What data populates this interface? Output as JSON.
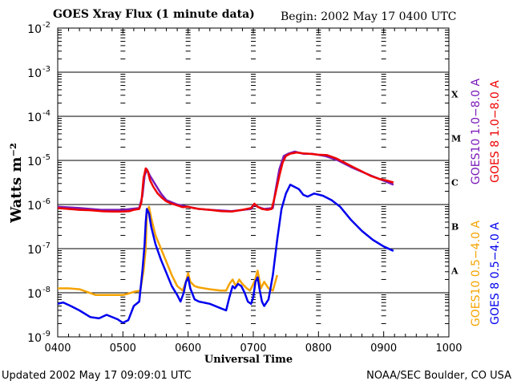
{
  "header": {
    "title": "GOES Xray Flux (1 minute data)",
    "begin": "Begin: 2002 May 17 0400 UTC"
  },
  "footer": {
    "updated": "Updated 2002 May 17 09:09:01 UTC",
    "credit": "NOAA/SEC Boulder, CO USA"
  },
  "chart_data": {
    "type": "line",
    "title": "GOES Xray Flux (1 minute data)",
    "xlabel": "Universal Time",
    "ylabel": "Watts m⁻²",
    "yscale": "log",
    "xlim": [
      0,
      360
    ],
    "ylim": [
      -9,
      -2
    ],
    "x_ticks": [
      {
        "x": 0,
        "label": "0400"
      },
      {
        "x": 60,
        "label": "0500"
      },
      {
        "x": 120,
        "label": "0600"
      },
      {
        "x": 180,
        "label": "0700"
      },
      {
        "x": 240,
        "label": "0800"
      },
      {
        "x": 300,
        "label": "0900"
      },
      {
        "x": 360,
        "label": "1000"
      }
    ],
    "y_ticks": [
      {
        "y": -2,
        "label": "10",
        "exp": "-2"
      },
      {
        "y": -3,
        "label": "10",
        "exp": "-3"
      },
      {
        "y": -4,
        "label": "10",
        "exp": "-4"
      },
      {
        "y": -5,
        "label": "10",
        "exp": "-5"
      },
      {
        "y": -6,
        "label": "10",
        "exp": "-6"
      },
      {
        "y": -7,
        "label": "10",
        "exp": "-7"
      },
      {
        "y": -8,
        "label": "10",
        "exp": "-8"
      },
      {
        "y": -9,
        "label": "10",
        "exp": "-9"
      }
    ],
    "class_labels": [
      {
        "label": "X",
        "y": -3.5
      },
      {
        "label": "M",
        "y": -4.5
      },
      {
        "label": "C",
        "y": -5.5
      },
      {
        "label": "B",
        "y": -6.5
      },
      {
        "label": "A",
        "y": -7.5
      }
    ],
    "grid": true,
    "series": [
      {
        "name": "GOES10 0.5-4.0 A",
        "color": "#f5a300",
        "points": [
          [
            0,
            -7.9
          ],
          [
            10,
            -7.9
          ],
          [
            20,
            -7.92
          ],
          [
            35,
            -8.05
          ],
          [
            50,
            -8.05
          ],
          [
            60,
            -8.05
          ],
          [
            65,
            -8.02
          ],
          [
            70,
            -7.98
          ],
          [
            76,
            -7.95
          ],
          [
            79,
            -7.5
          ],
          [
            81,
            -7.0
          ],
          [
            82,
            -6.2
          ],
          [
            84,
            -6.05
          ],
          [
            86,
            -6.3
          ],
          [
            90,
            -6.7
          ],
          [
            95,
            -7.0
          ],
          [
            100,
            -7.3
          ],
          [
            105,
            -7.6
          ],
          [
            110,
            -7.85
          ],
          [
            115,
            -7.95
          ],
          [
            118,
            -7.75
          ],
          [
            120,
            -7.55
          ],
          [
            122,
            -7.75
          ],
          [
            126,
            -7.85
          ],
          [
            130,
            -7.88
          ],
          [
            140,
            -7.92
          ],
          [
            150,
            -7.95
          ],
          [
            155,
            -7.95
          ],
          [
            158,
            -7.8
          ],
          [
            161,
            -7.7
          ],
          [
            164,
            -7.85
          ],
          [
            167,
            -7.7
          ],
          [
            170,
            -7.8
          ],
          [
            174,
            -7.9
          ],
          [
            177,
            -7.95
          ],
          [
            181,
            -7.75
          ],
          [
            184,
            -7.5
          ],
          [
            187,
            -7.9
          ],
          [
            190,
            -7.75
          ],
          [
            194,
            -7.9
          ],
          [
            198,
            -7.95
          ],
          [
            202,
            -7.6
          ]
        ]
      },
      {
        "name": "GOES 8 0.5-4.0 A",
        "color": "#0000ee",
        "points": [
          [
            0,
            -8.25
          ],
          [
            5,
            -8.22
          ],
          [
            12,
            -8.3
          ],
          [
            20,
            -8.4
          ],
          [
            30,
            -8.55
          ],
          [
            38,
            -8.58
          ],
          [
            45,
            -8.5
          ],
          [
            55,
            -8.6
          ],
          [
            60,
            -8.68
          ],
          [
            65,
            -8.62
          ],
          [
            70,
            -8.3
          ],
          [
            75,
            -8.2
          ],
          [
            78,
            -7.5
          ],
          [
            80,
            -6.9
          ],
          [
            81,
            -6.4
          ],
          [
            82,
            -6.1
          ],
          [
            84,
            -6.2
          ],
          [
            86,
            -6.5
          ],
          [
            90,
            -6.9
          ],
          [
            95,
            -7.25
          ],
          [
            100,
            -7.55
          ],
          [
            105,
            -7.85
          ],
          [
            110,
            -8.05
          ],
          [
            113,
            -8.2
          ],
          [
            116,
            -8.0
          ],
          [
            118,
            -7.75
          ],
          [
            120,
            -7.65
          ],
          [
            122,
            -7.9
          ],
          [
            126,
            -8.15
          ],
          [
            130,
            -8.2
          ],
          [
            140,
            -8.25
          ],
          [
            150,
            -8.35
          ],
          [
            155,
            -8.4
          ],
          [
            158,
            -8.1
          ],
          [
            161,
            -7.85
          ],
          [
            163,
            -7.9
          ],
          [
            166,
            -7.8
          ],
          [
            169,
            -7.85
          ],
          [
            172,
            -8.0
          ],
          [
            175,
            -8.2
          ],
          [
            178,
            -8.25
          ],
          [
            180,
            -8.1
          ],
          [
            182,
            -7.75
          ],
          [
            184,
            -7.65
          ],
          [
            186,
            -7.95
          ],
          [
            188,
            -8.2
          ],
          [
            190,
            -8.3
          ],
          [
            194,
            -8.15
          ],
          [
            198,
            -7.6
          ],
          [
            202,
            -6.8
          ],
          [
            206,
            -6.1
          ],
          [
            210,
            -5.75
          ],
          [
            214,
            -5.55
          ],
          [
            218,
            -5.6
          ],
          [
            222,
            -5.65
          ],
          [
            226,
            -5.78
          ],
          [
            230,
            -5.82
          ],
          [
            236,
            -5.75
          ],
          [
            244,
            -5.8
          ],
          [
            252,
            -5.9
          ],
          [
            260,
            -6.05
          ],
          [
            270,
            -6.35
          ],
          [
            280,
            -6.6
          ],
          [
            290,
            -6.8
          ],
          [
            300,
            -6.95
          ],
          [
            309,
            -7.05
          ]
        ]
      },
      {
        "name": "GOES10 1.0-8.0 A",
        "color": "#7a1ab8",
        "points": [
          [
            0,
            -6.05
          ],
          [
            20,
            -6.08
          ],
          [
            40,
            -6.12
          ],
          [
            60,
            -6.12
          ],
          [
            75,
            -6.08
          ],
          [
            78,
            -5.8
          ],
          [
            80,
            -5.35
          ],
          [
            82,
            -5.2
          ],
          [
            85,
            -5.35
          ],
          [
            90,
            -5.55
          ],
          [
            95,
            -5.75
          ],
          [
            100,
            -5.9
          ],
          [
            110,
            -6.0
          ],
          [
            120,
            -6.05
          ],
          [
            130,
            -6.1
          ],
          [
            140,
            -6.12
          ],
          [
            160,
            -6.15
          ],
          [
            178,
            -6.1
          ],
          [
            181,
            -6.0
          ],
          [
            184,
            -6.05
          ],
          [
            190,
            -6.1
          ],
          [
            198,
            -6.08
          ],
          [
            200,
            -5.75
          ],
          [
            204,
            -5.2
          ],
          [
            208,
            -4.9
          ],
          [
            212,
            -4.85
          ],
          [
            218,
            -4.8
          ],
          [
            226,
            -4.85
          ],
          [
            234,
            -4.85
          ],
          [
            246,
            -4.9
          ],
          [
            258,
            -5.0
          ],
          [
            270,
            -5.15
          ],
          [
            282,
            -5.28
          ],
          [
            294,
            -5.4
          ],
          [
            304,
            -5.5
          ],
          [
            309,
            -5.55
          ]
        ]
      },
      {
        "name": "GOES 8 1.0-8.0 A",
        "color": "#ee0000",
        "points": [
          [
            0,
            -6.08
          ],
          [
            10,
            -6.1
          ],
          [
            20,
            -6.12
          ],
          [
            30,
            -6.13
          ],
          [
            40,
            -6.15
          ],
          [
            50,
            -6.16
          ],
          [
            60,
            -6.16
          ],
          [
            66,
            -6.15
          ],
          [
            70,
            -6.12
          ],
          [
            75,
            -6.1
          ],
          [
            77,
            -5.95
          ],
          [
            79,
            -5.4
          ],
          [
            81,
            -5.18
          ],
          [
            83,
            -5.25
          ],
          [
            85,
            -5.45
          ],
          [
            88,
            -5.6
          ],
          [
            92,
            -5.75
          ],
          [
            96,
            -5.85
          ],
          [
            100,
            -5.93
          ],
          [
            105,
            -5.98
          ],
          [
            110,
            -6.02
          ],
          [
            115,
            -6.06
          ],
          [
            120,
            -6.05
          ],
          [
            125,
            -6.08
          ],
          [
            130,
            -6.1
          ],
          [
            140,
            -6.12
          ],
          [
            150,
            -6.15
          ],
          [
            160,
            -6.16
          ],
          [
            170,
            -6.12
          ],
          [
            178,
            -6.08
          ],
          [
            181,
            -5.98
          ],
          [
            184,
            -6.05
          ],
          [
            188,
            -6.1
          ],
          [
            193,
            -6.12
          ],
          [
            197,
            -6.1
          ],
          [
            200,
            -5.8
          ],
          [
            204,
            -5.35
          ],
          [
            207,
            -5.05
          ],
          [
            210,
            -4.9
          ],
          [
            214,
            -4.85
          ],
          [
            220,
            -4.82
          ],
          [
            226,
            -4.84
          ],
          [
            232,
            -4.85
          ],
          [
            240,
            -4.87
          ],
          [
            248,
            -4.88
          ],
          [
            256,
            -4.95
          ],
          [
            264,
            -5.05
          ],
          [
            272,
            -5.15
          ],
          [
            280,
            -5.25
          ],
          [
            288,
            -5.35
          ],
          [
            296,
            -5.42
          ],
          [
            302,
            -5.45
          ],
          [
            309,
            -5.5
          ]
        ]
      }
    ],
    "legend": {
      "placement": "right",
      "items": [
        {
          "text": "GOES10 1.0−8.0 A",
          "color": "#7a1ab8"
        },
        {
          "text": "GOES 8 1.0−8.0 A",
          "color": "#ee0000"
        },
        {
          "text": "GOES10 0.5−4.0 A",
          "color": "#f5a300"
        },
        {
          "text": "GOES 8 0.5−4.0 A",
          "color": "#0000ee"
        }
      ]
    }
  }
}
